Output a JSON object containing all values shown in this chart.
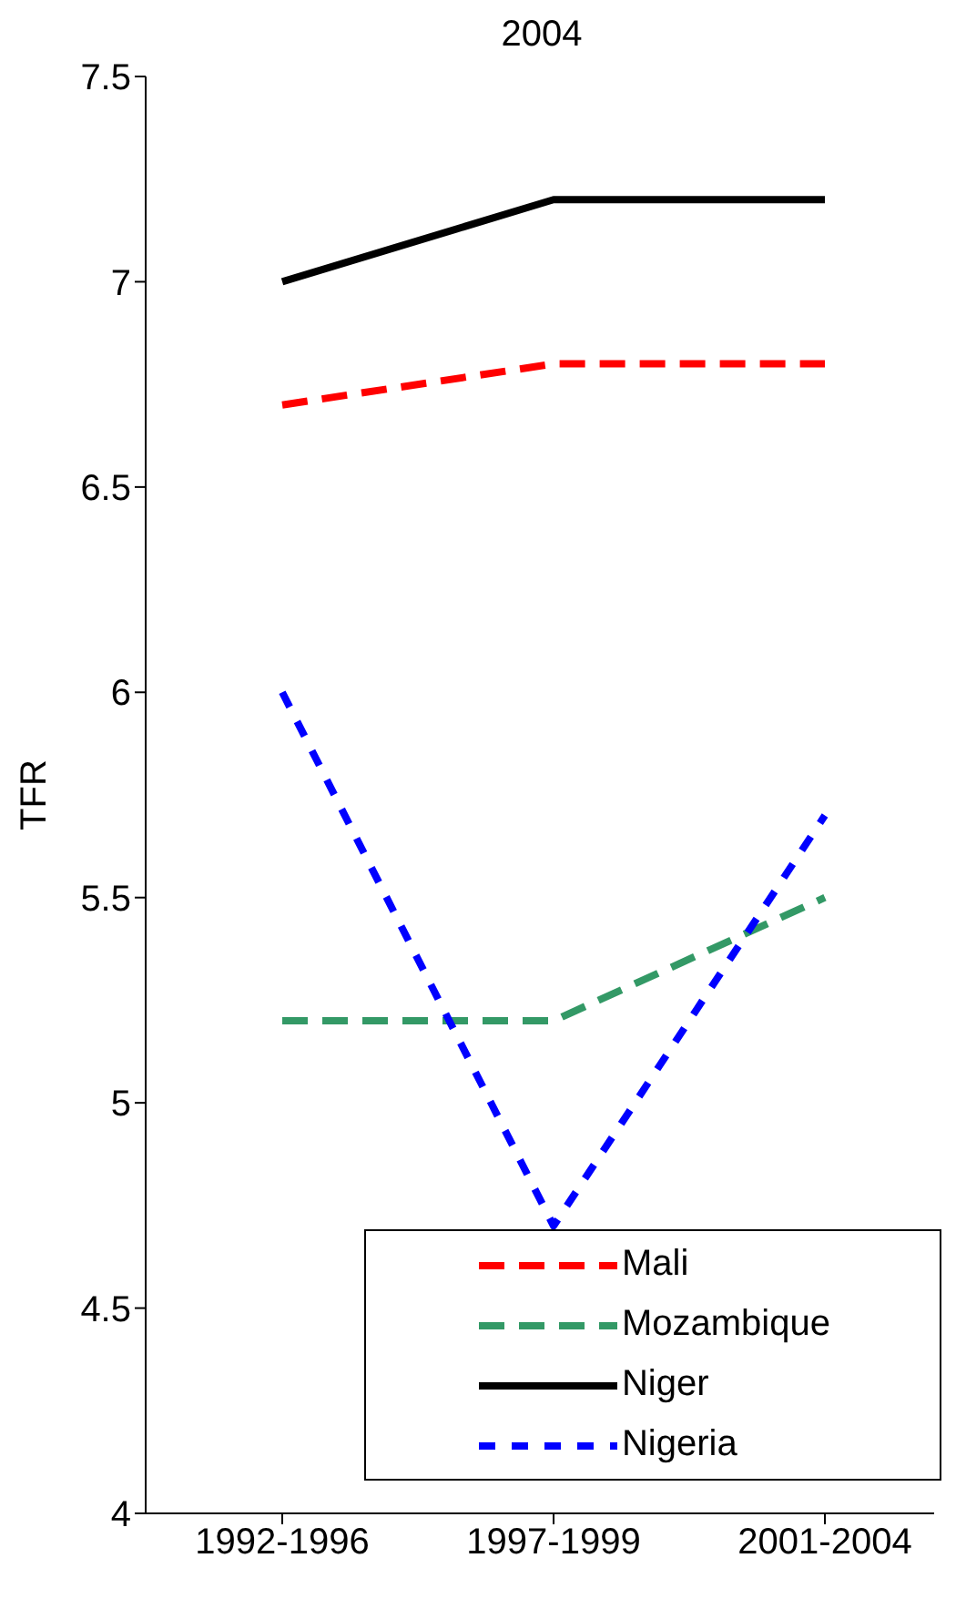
{
  "chart_data": {
    "type": "line",
    "title": "2004",
    "ylabel": "TFR",
    "categories": [
      "1992-1996",
      "1997-1999",
      "2001-2004"
    ],
    "series": [
      {
        "name": "Mali",
        "color": "#ff0000",
        "values": [
          6.7,
          6.8,
          6.8
        ],
        "line_style": "dashed"
      },
      {
        "name": "Mozambique",
        "color": "#339966",
        "values": [
          5.2,
          5.2,
          5.5
        ],
        "line_style": "dashed"
      },
      {
        "name": "Niger",
        "color": "#000000",
        "values": [
          7.0,
          7.2,
          7.2
        ],
        "line_style": "solid"
      },
      {
        "name": "Nigeria",
        "color": "#0000ff",
        "values": [
          6.0,
          4.7,
          5.7
        ],
        "line_style": "dotted"
      }
    ],
    "ylim": [
      4,
      7.5
    ],
    "yticks": [
      4,
      4.5,
      5,
      5.5,
      6,
      6.5,
      7,
      7.5
    ],
    "legend": "bottom right",
    "grid": false,
    "marker": "none"
  }
}
